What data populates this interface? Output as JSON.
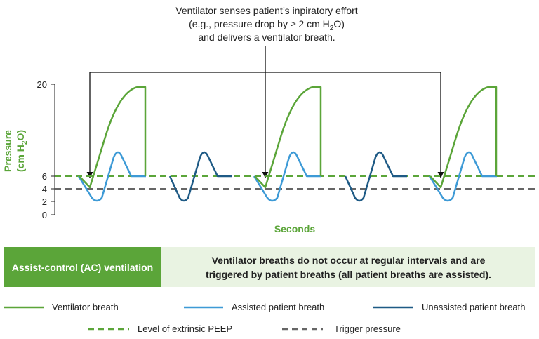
{
  "callout": {
    "line1": "Ventilator senses patient’s inpiratory effort",
    "line2_pre": "(e.g., pressure drop by ≥ 2 cm H",
    "line2_sub": "2",
    "line2_post": "O)",
    "line3": "and delivers a ventilator breath."
  },
  "axes": {
    "ylabel_line1": "Pressure",
    "ylabel_line2_pre": "(cm H",
    "ylabel_line2_sub": "2",
    "ylabel_line2_post": "O)",
    "xlabel": "Seconds",
    "y_ticks": [
      "20",
      "6",
      "4",
      "2",
      "0"
    ]
  },
  "chart_data": {
    "type": "line",
    "ylim": [
      0,
      20
    ],
    "y_ticks": [
      0,
      2,
      4,
      6,
      20
    ],
    "peep_level": 6,
    "trigger_pressure": 4,
    "ventilator_breath_peak": 20,
    "patient_breath_peak": 10,
    "patient_breath_trough": 2,
    "cycle_sequence": [
      "assisted",
      "unassisted",
      "assisted",
      "unassisted",
      "assisted"
    ]
  },
  "banner": {
    "left": "Assist-control (AC) ventilation",
    "right_line1": "Ventilator breaths do not occur at regular intervals and are",
    "right_line2": "triggered by patient breaths (all patient breaths are assisted)."
  },
  "legend": {
    "ventilator_breath": "Ventilator breath",
    "assisted_patient_breath": "Assisted patient breath",
    "unassisted_patient_breath": "Unassisted patient breath",
    "peep": "Level of extrinsic PEEP",
    "trigger": "Trigger pressure"
  },
  "colors": {
    "ventilator": "#5ba539",
    "assisted": "#3d9ad6",
    "unassisted": "#1e5a85",
    "peep": "#5ba539",
    "trigger": "#666666",
    "banner_left": "#5ba539",
    "banner_right": "#e9f3e2"
  }
}
